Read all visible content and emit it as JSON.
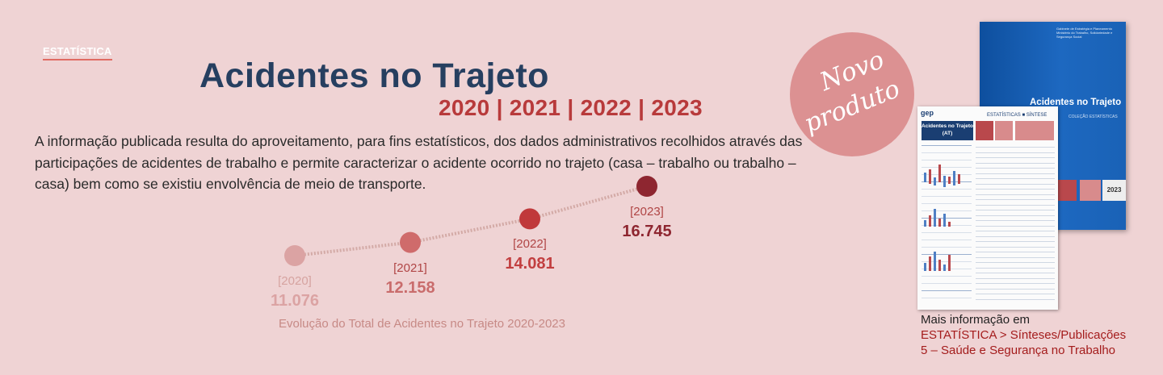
{
  "tag": "ESTATÍSTICA",
  "title": "Acidentes no Trajeto",
  "years": "2020 | 2021 | 2022 | 2023",
  "description": "A informação publicada resulta do aproveitamento, para fins estatísticos, dos dados administrativos recolhidos através das participações de acidentes de trabalho e permite caracterizar o acidente ocorrido no trajeto (casa – trabalho ou trabalho – casa) bem como se existiu envolvência de meio de transporte.",
  "stamp": {
    "line1": "Novo",
    "line2": "produto"
  },
  "chart_data": {
    "type": "line",
    "title": "Evolução do Total de Acidentes no Trajeto 2020-2023",
    "categories": [
      "[2020]",
      "[2021]",
      "[2022]",
      "[2023]"
    ],
    "values": [
      11076,
      12158,
      14081,
      16745
    ],
    "value_labels": [
      "11.076",
      "12.158",
      "14.081",
      "16.745"
    ],
    "colors": [
      "#dba3a3",
      "#cf6b6b",
      "#c0393b",
      "#8e2630"
    ]
  },
  "more_info": {
    "line1": "Mais informação em",
    "line2": "ESTATÍSTICA > Sínteses/Publicações",
    "line3": "5 – Saúde e Segurança no Trabalho"
  },
  "cover": {
    "title": "Acidentes no Trajeto",
    "subtitle": "COLEÇÃO ESTATÍSTICAS",
    "org": "Gabinete de Estratégia e Planeamento\nMinistério do Trabalho, Solidariedade e Segurança Social",
    "year": "2023"
  },
  "sheet": {
    "logo": "gep",
    "header": "ESTATÍSTICAS ■ SÍNTESE",
    "box_title": "Acidentes no Trajeto (AT)"
  }
}
